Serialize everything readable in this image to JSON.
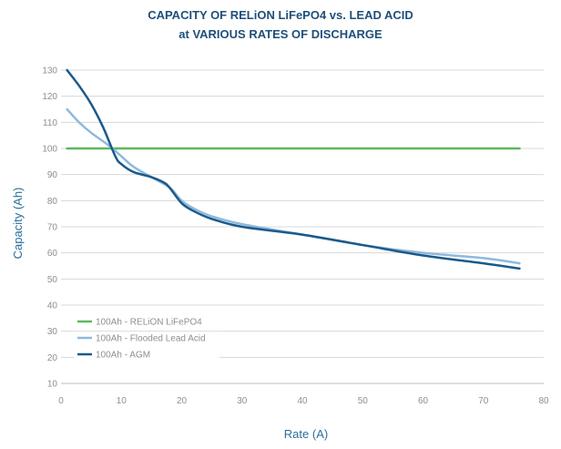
{
  "chart_data": {
    "type": "line",
    "title": "CAPACITY OF RELiON LiFePO4 vs. LEAD ACID",
    "subtitle": "at VARIOUS RATES OF DISCHARGE",
    "xlabel": "Rate (A)",
    "ylabel": "Capacity (Ah)",
    "xlim": [
      0,
      80
    ],
    "ylim": [
      10,
      130
    ],
    "xticks": [
      "0",
      "10",
      "20",
      "30",
      "40",
      "50",
      "60",
      "70",
      "80"
    ],
    "yticks": [
      "10",
      "20",
      "30",
      "40",
      "50",
      "60",
      "70",
      "80",
      "90",
      "100",
      "110",
      "120",
      "130"
    ],
    "grid": "horizontal",
    "legend_position": "bottom-left",
    "series": [
      {
        "name": "100Ah - RELiON LiFePO4",
        "color": "#5cb85c",
        "x": [
          1,
          76
        ],
        "y": [
          100,
          100
        ]
      },
      {
        "name": "100Ah - Flooded Lead Acid",
        "color": "#8fb9dc",
        "x": [
          1,
          3,
          5,
          8,
          10,
          12,
          15,
          18,
          20,
          22,
          25,
          30,
          40,
          50,
          60,
          70,
          76
        ],
        "y": [
          115,
          110,
          106,
          101,
          97,
          93,
          89,
          85,
          80,
          77,
          74,
          71,
          67,
          63,
          60,
          58,
          56
        ]
      },
      {
        "name": "100Ah - AGM",
        "color": "#1a5a8c",
        "x": [
          1,
          3,
          5,
          7,
          9,
          10,
          12,
          15,
          17,
          18,
          20,
          22,
          25,
          30,
          40,
          50,
          60,
          70,
          76
        ],
        "y": [
          130,
          124,
          117,
          108,
          97,
          94,
          91,
          89,
          87,
          85,
          79,
          76,
          73,
          70,
          67,
          63,
          59,
          56,
          54
        ]
      }
    ]
  }
}
